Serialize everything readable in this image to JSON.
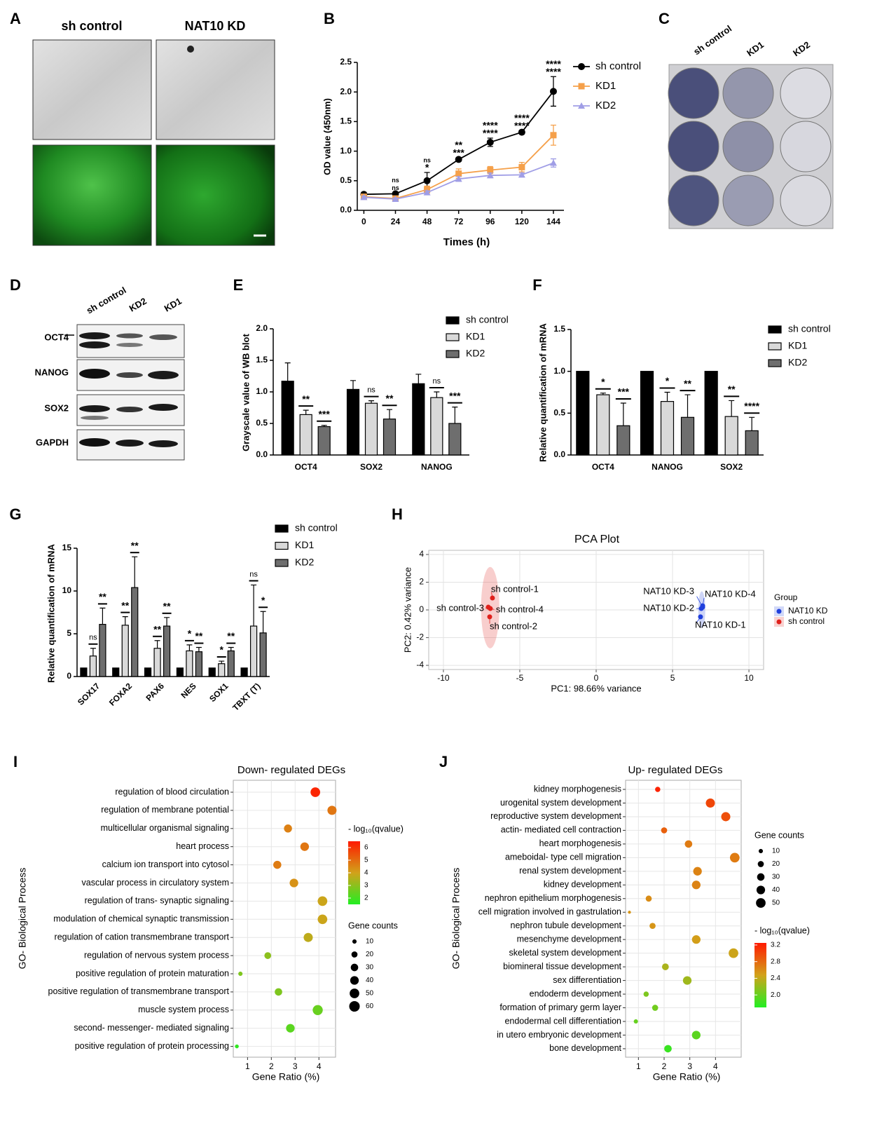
{
  "image_panels": [
    {
      "panel": "A",
      "column_labels": [
        "sh control",
        "NAT10 KD"
      ]
    },
    {
      "panel": "C",
      "column_labels": [
        "sh control",
        "KD1",
        "KD2"
      ]
    },
    {
      "panel": "D",
      "column_labels": [
        "sh control",
        "KD2",
        "KD1"
      ],
      "row_labels": [
        "OCT4",
        "NANOG",
        "SOX2",
        "GAPDH"
      ]
    }
  ],
  "chart_data": [
    {
      "panel": "B",
      "type": "line",
      "x_label": "Times (h)",
      "y_label": "OD value (450nm)",
      "x": [
        0,
        24,
        48,
        72,
        96,
        120,
        144
      ],
      "xlim": [
        -5,
        152
      ],
      "xticks": [
        0,
        24,
        48,
        72,
        96,
        120,
        144
      ],
      "ylim": [
        0,
        2.5
      ],
      "yticks": [
        {
          "value": 0,
          "label": "0.0"
        },
        {
          "value": 0.5,
          "label": "0.5"
        },
        {
          "value": 1,
          "label": "1.0"
        },
        {
          "value": 1.5,
          "label": "1.5"
        },
        {
          "value": 2,
          "label": "2.0"
        },
        {
          "value": 2.5,
          "label": "2.5"
        }
      ],
      "series": [
        {
          "name": "sh control",
          "color": "#000000",
          "marker": "circle",
          "values": [
            0.27,
            0.28,
            0.5,
            0.86,
            1.15,
            1.32,
            2.01
          ],
          "errors": [
            0.02,
            0.02,
            0.14,
            0.03,
            0.07,
            0.03,
            0.25
          ]
        },
        {
          "name": "KD1",
          "color": "#f5a04a",
          "marker": "square",
          "values": [
            0.23,
            0.2,
            0.35,
            0.62,
            0.68,
            0.73,
            1.27
          ],
          "errors": [
            0.02,
            0.02,
            0.06,
            0.08,
            0.06,
            0.08,
            0.17
          ],
          "significance": [
            null,
            "ns",
            "ns",
            "**",
            "****",
            "****",
            "****"
          ]
        },
        {
          "name": "KD2",
          "color": "#a09ee6",
          "marker": "triangle",
          "values": [
            0.22,
            0.19,
            0.3,
            0.53,
            0.59,
            0.6,
            0.8
          ],
          "errors": [
            0.02,
            0.02,
            0.03,
            0.04,
            0.04,
            0.03,
            0.07
          ],
          "significance": [
            null,
            "ns",
            "*",
            "***",
            "****",
            "****",
            "****"
          ]
        }
      ]
    },
    {
      "panel": "E",
      "type": "bar",
      "y_label": "Grayscale value of WB blot",
      "categories": [
        "OCT4",
        "SOX2",
        "NANOG"
      ],
      "ylim": [
        0,
        2
      ],
      "yticks": [
        {
          "value": 0,
          "label": "0.0"
        },
        {
          "value": 0.5,
          "label": "0.5"
        },
        {
          "value": 1,
          "label": "1.0"
        },
        {
          "value": 1.5,
          "label": "1.5"
        },
        {
          "value": 2,
          "label": "2.0"
        }
      ],
      "series": [
        {
          "name": "sh control",
          "color": "#000000",
          "values": [
            1.17,
            1.04,
            1.13
          ],
          "errors": [
            0.29,
            0.14,
            0.15
          ]
        },
        {
          "name": "KD1",
          "color": "#d9d9d9",
          "values": [
            0.64,
            0.82,
            0.91
          ],
          "errors": [
            0.07,
            0.04,
            0.09
          ],
          "significance": [
            "**",
            "ns",
            "ns"
          ]
        },
        {
          "name": "KD2",
          "color": "#6e6e6e",
          "values": [
            0.45,
            0.57,
            0.5
          ],
          "errors": [
            0.02,
            0.15,
            0.26
          ],
          "significance": [
            "***",
            "**",
            "***"
          ]
        }
      ]
    },
    {
      "panel": "F",
      "type": "bar",
      "y_label": "Relative quantification of mRNA",
      "categories": [
        "OCT4",
        "NANOG",
        "SOX2"
      ],
      "ylim": [
        0,
        1.5
      ],
      "yticks": [
        {
          "value": 0,
          "label": "0.0"
        },
        {
          "value": 0.5,
          "label": "0.5"
        },
        {
          "value": 1,
          "label": "1.0"
        },
        {
          "value": 1.5,
          "label": "1.5"
        }
      ],
      "series": [
        {
          "name": "sh control",
          "color": "#000000",
          "values": [
            1,
            1,
            1
          ]
        },
        {
          "name": "KD1",
          "color": "#d9d9d9",
          "values": [
            0.72,
            0.64,
            0.46
          ],
          "errors": [
            0.02,
            0.11,
            0.19
          ],
          "significance": [
            "*",
            "*",
            "**"
          ]
        },
        {
          "name": "KD2",
          "color": "#6e6e6e",
          "values": [
            0.35,
            0.45,
            0.29
          ],
          "errors": [
            0.27,
            0.27,
            0.16
          ],
          "significance": [
            "***",
            "**",
            "****"
          ]
        }
      ]
    },
    {
      "panel": "G",
      "type": "bar",
      "y_label": "Relative quantification of mRNA",
      "categories": [
        "SOX17",
        "FOXA2",
        "PAX6",
        "NES",
        "SOX1",
        "TBXT (T)"
      ],
      "ylim": [
        0,
        15
      ],
      "yticks": [
        0,
        5,
        10,
        15
      ],
      "series": [
        {
          "name": "sh control",
          "color": "#000000",
          "values": [
            1,
            1,
            1,
            1,
            1,
            1
          ]
        },
        {
          "name": "KD1",
          "color": "#d9d9d9",
          "values": [
            2.4,
            6.0,
            3.3,
            3.0,
            1.5,
            5.9
          ],
          "errors": [
            0.9,
            1.0,
            0.9,
            0.7,
            0.3,
            4.8
          ],
          "significance": [
            "ns",
            "**",
            "**",
            "*",
            "*",
            "ns"
          ]
        },
        {
          "name": "KD2",
          "color": "#6e6e6e",
          "values": [
            6.1,
            10.4,
            5.9,
            2.9,
            3.0,
            5.1
          ],
          "errors": [
            1.9,
            3.6,
            1.0,
            0.5,
            0.4,
            2.5
          ],
          "significance": [
            "**",
            "**",
            "**",
            "**",
            "**",
            "*"
          ]
        }
      ]
    },
    {
      "panel": "H",
      "type": "scatter",
      "title": "PCA Plot",
      "x_label": "PC1: 98.66% variance",
      "y_label": "PC2: 0.42% variance",
      "xlim": [
        -10.96,
        10.96
      ],
      "ylim": [
        -4.3,
        4.3
      ],
      "xticks": [
        -10,
        -5,
        0,
        5,
        10
      ],
      "yticks": [
        -4,
        -2,
        0,
        2,
        4
      ],
      "grid": true,
      "legend_title": "Group",
      "series": [
        {
          "name": "NAT10 KD",
          "color": "#1f3fdc",
          "x": [
            6.83,
            6.88,
            6.97,
            6.97
          ],
          "values": [
            -0.5,
            0.1,
            0.2,
            0.3
          ],
          "labels": [
            "NAT10 KD-1",
            "NAT10 KD-2",
            "NAT10 KD-3",
            "NAT10 KD-4"
          ]
        },
        {
          "name": "sh control",
          "color": "#e0201b",
          "x": [
            -6.79,
            -6.97,
            -7.06,
            -6.93
          ],
          "values": [
            0.86,
            -0.5,
            0.2,
            0.1
          ],
          "labels": [
            "sh control-1",
            "sh control-2",
            "sh control-3",
            "sh control-4"
          ]
        }
      ]
    },
    {
      "panel": "I",
      "type": "bubble",
      "title": "Down- regulated DEGs",
      "x_label": "Gene Ratio (%)",
      "y_label": "GO- Biological Process",
      "xlim": [
        0.4,
        4.7
      ],
      "xticks": [
        1,
        2,
        3,
        4
      ],
      "categories": [
        "regulation of blood circulation",
        "regulation of membrane potential",
        "multicellular organismal signaling",
        "heart process",
        "calcium ion transport into cytosol",
        "vascular process in circulatory system",
        "regulation of trans- synaptic signaling",
        "modulation of chemical synaptic transmission",
        "regulation of cation transmembrane transport",
        "regulation of nervous system process",
        "positive regulation of protein maturation",
        "positive regulation of transmembrane transport",
        "muscle system process",
        "second- messenger- mediated signaling",
        "positive regulation of protein processing"
      ],
      "values": [
        3.85,
        4.55,
        2.7,
        3.4,
        2.25,
        2.95,
        4.15,
        4.15,
        3.55,
        1.85,
        0.7,
        2.3,
        3.95,
        2.8,
        0.55
      ],
      "sizes": [
        50,
        45,
        35,
        40,
        35,
        40,
        50,
        50,
        45,
        25,
        10,
        30,
        55,
        40,
        8
      ],
      "color_values": [
        6.3,
        4.8,
        4.6,
        4.8,
        4.7,
        4.3,
        3.9,
        3.9,
        3.7,
        3.0,
        2.8,
        2.8,
        2.5,
        2.3,
        1.7
      ],
      "color_legend_title": "- log₁₀(qvalue)",
      "color_lim": [
        1.5,
        6.5
      ],
      "color_ticks": [
        2,
        3,
        4,
        5,
        6
      ],
      "colors": [
        "#22ee22",
        "#d2a21a",
        "#ff1a00"
      ],
      "size_legend_title": "Gene counts",
      "size_ticks": [
        10,
        20,
        30,
        40,
        50,
        60
      ]
    },
    {
      "panel": "J",
      "type": "bubble",
      "title": "Up- regulated DEGs",
      "x_label": "Gene Ratio (%)",
      "y_label": "GO- Biological Process",
      "xlim": [
        0.5,
        5.0
      ],
      "xticks": [
        1,
        2,
        3,
        4
      ],
      "categories": [
        "kidney morphogenesis",
        "urogenital system development",
        "reproductive system development",
        "actin- mediated cell contraction",
        "heart morphogenesis",
        "ameboidal- type cell migration",
        "renal system development",
        "kidney development",
        "nephron epithelium morphogenesis",
        "cell migration involved in gastrulation",
        "nephron tubule development",
        "mesenchyme development",
        "skeletal system development",
        "biomineral tissue development",
        "sex differentiation",
        "endoderm development",
        "formation of primary germ layer",
        "endodermal cell differentiation",
        "in utero embryonic development",
        "bone development"
      ],
      "values": [
        1.75,
        3.8,
        4.4,
        2.0,
        2.95,
        4.75,
        3.3,
        3.25,
        1.4,
        0.65,
        1.55,
        3.25,
        4.7,
        2.05,
        2.9,
        1.3,
        1.65,
        0.9,
        3.25,
        2.15
      ],
      "sizes": [
        15,
        45,
        45,
        20,
        30,
        50,
        40,
        40,
        20,
        5,
        20,
        40,
        50,
        25,
        40,
        15,
        20,
        10,
        40,
        30
      ],
      "color_values": [
        3.2,
        3.0,
        2.95,
        2.85,
        2.7,
        2.7,
        2.65,
        2.65,
        2.6,
        2.55,
        2.55,
        2.5,
        2.45,
        2.3,
        2.25,
        2.1,
        2.05,
        2.0,
        1.95,
        1.8
      ],
      "size_legend_title": "Gene counts",
      "size_ticks": [
        10,
        20,
        30,
        40,
        50
      ],
      "color_legend_title": "- log₁₀(qvalue)",
      "color_lim": [
        1.7,
        3.25
      ],
      "color_ticks": [
        {
          "value": 2,
          "label": "2.0"
        },
        {
          "value": 2.4,
          "label": "2.4"
        },
        {
          "value": 2.8,
          "label": "2.8"
        },
        {
          "value": 3.2,
          "label": "3.2"
        }
      ],
      "colors": [
        "#22ee22",
        "#d2a21a",
        "#ff1a00"
      ]
    }
  ]
}
